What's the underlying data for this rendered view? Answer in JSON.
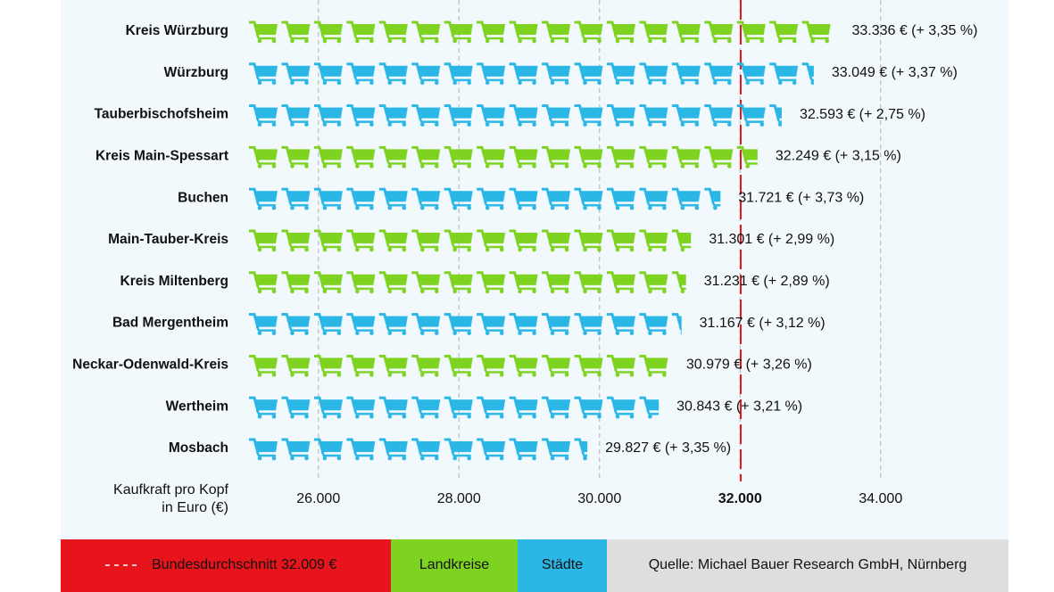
{
  "chart_data": {
    "type": "bar",
    "orientation": "horizontal",
    "categories": [
      "Kreis Würzburg",
      "Würzburg",
      "Tauberbischofsheim",
      "Kreis Main-Spessart",
      "Buchen",
      "Main-Tauber-Kreis",
      "Kreis Miltenberg",
      "Bad Mergentheim",
      "Neckar-Odenwald-Kreis",
      "Wertheim",
      "Mosbach"
    ],
    "series": [
      {
        "name": "Landkreise",
        "color": "#7ed321",
        "values": [
          33336,
          null,
          null,
          32249,
          null,
          31301,
          31231,
          null,
          30979,
          null,
          null
        ],
        "value_labels": [
          "33.336 € (+ 3,35 %)",
          null,
          null,
          "32.249 € (+ 3,15 %)",
          null,
          "31.301 € (+ 2,99 %)",
          "31.231 € (+ 2,89 %)",
          null,
          "30.979 € (+ 3,26 %)",
          null,
          null
        ]
      },
      {
        "name": "Städte",
        "color": "#2bb7e6",
        "values": [
          null,
          33049,
          32593,
          null,
          31721,
          null,
          null,
          31167,
          null,
          30843,
          29827
        ],
        "value_labels": [
          null,
          "33.049 € (+ 3,37 %)",
          "32.593 € (+ 2,75 %)",
          null,
          "31.721 € (+ 3,73 %)",
          null,
          null,
          "31.167 € (+ 3,12 %)",
          null,
          "30.843 € (+ 3,21 %)",
          "29.827 € (+ 3,35 %)"
        ]
      }
    ],
    "xlabel": [
      "Kaufkraft pro Kopf",
      "in Euro (€)"
    ],
    "xlim": [
      25000,
      35000
    ],
    "xticks": [
      {
        "value": 26000,
        "label": "26.000"
      },
      {
        "value": 28000,
        "label": "28.000"
      },
      {
        "value": 30000,
        "label": "30.000"
      },
      {
        "value": 32000,
        "label": "32.000",
        "color": "#e8141b"
      },
      {
        "value": 34000,
        "label": "34.000"
      }
    ],
    "grid": true,
    "reference_line": {
      "value": 32009,
      "label": "Bundesdurchschnitt 32.009 €",
      "color": "#e8141b"
    },
    "source": "Quelle: Michael Bauer Research GmbH, Nürnberg"
  }
}
